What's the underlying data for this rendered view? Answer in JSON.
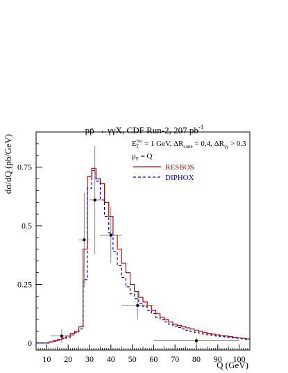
{
  "chart_data": {
    "type": "line",
    "title": "pp̄ → γγX, CDF Run-2, 207 pb⁻¹",
    "title_parts": {
      "main": "pp̄ → γγX, CDF Run-2, 207 pb",
      "sup": "-1"
    },
    "xlabel": "Q (GeV)",
    "ylabel": "dσ/dQ (pb/GeV)",
    "xlim": [
      5,
      105
    ],
    "ylim": [
      -0.03,
      0.9
    ],
    "x_ticks": [
      10,
      20,
      30,
      40,
      50,
      60,
      70,
      80,
      90,
      100
    ],
    "y_ticks": [
      0,
      0.25,
      0.5,
      0.75
    ],
    "y_tick_labels": [
      "0",
      "0.25",
      "0.5",
      "0.75"
    ],
    "annotations": [
      {
        "id": "iso",
        "text": "E_T^iso = 1 GeV, ΔR_cone = 0.4, ΔR_γγ > 0.3"
      },
      {
        "id": "scale",
        "text": "μ_F = Q"
      }
    ],
    "annotation_parts": {
      "e": "E",
      "iso": "iso",
      "t": "T",
      "mid": " = 1 GeV, ΔR",
      "cone": "cone",
      "mid2": " = 0.4, ΔR",
      "gg": "γγ",
      "end": " > 0.3",
      "mu": "μ",
      "f": "F",
      "muend": " = Q"
    },
    "legend_position": "upper-right",
    "series": [
      {
        "name": "RESBOS",
        "color": "#cc0000",
        "style": "solid",
        "bin_edges": [
          5,
          7,
          9,
          11,
          13,
          15,
          17,
          19,
          21,
          23,
          25,
          27,
          29,
          31,
          33,
          35,
          37,
          39,
          41,
          43,
          45,
          47,
          49,
          51,
          53,
          55,
          57,
          59,
          61,
          63,
          65,
          67,
          69,
          71,
          73,
          75,
          77,
          79,
          81,
          83,
          85,
          87,
          89,
          91,
          93,
          95,
          97,
          99,
          101,
          103,
          105
        ],
        "values": [
          0,
          0,
          0,
          0.005,
          0.01,
          0.015,
          0.022,
          0.03,
          0.04,
          0.05,
          0.07,
          0.4,
          0.71,
          0.745,
          0.7,
          0.68,
          0.6,
          0.54,
          0.46,
          0.4,
          0.34,
          0.3,
          0.25,
          0.22,
          0.195,
          0.175,
          0.16,
          0.14,
          0.125,
          0.11,
          0.1,
          0.09,
          0.08,
          0.075,
          0.07,
          0.065,
          0.06,
          0.055,
          0.05,
          0.045,
          0.04,
          0.038,
          0.035,
          0.032,
          0.03,
          0.028,
          0.025,
          0.022,
          0.02,
          0.018
        ]
      },
      {
        "name": "DIPHOX",
        "color": "#0000dd",
        "style": "dashed",
        "bin_edges": [
          5,
          7,
          9,
          11,
          13,
          15,
          17,
          19,
          21,
          23,
          25,
          27,
          29,
          31,
          33,
          35,
          37,
          39,
          41,
          43,
          45,
          47,
          49,
          51,
          53,
          55,
          57,
          59,
          61,
          63,
          65,
          67,
          69,
          71,
          73,
          75,
          77,
          79,
          81,
          83,
          85,
          87,
          89,
          91,
          93,
          95,
          97,
          99,
          101,
          103,
          105
        ],
        "values": [
          0,
          0,
          0,
          0.005,
          0.008,
          0.012,
          0.018,
          0.025,
          0.035,
          0.045,
          0.06,
          0.27,
          0.66,
          0.735,
          0.69,
          0.61,
          0.54,
          0.47,
          0.39,
          0.33,
          0.28,
          0.24,
          0.21,
          0.19,
          0.17,
          0.155,
          0.14,
          0.125,
          0.11,
          0.1,
          0.09,
          0.08,
          0.072,
          0.066,
          0.06,
          0.055,
          0.05,
          0.046,
          0.042,
          0.038,
          0.035,
          0.032,
          0.03,
          0.028,
          0.026,
          0.024,
          0.022,
          0.02,
          0.018,
          0.016
        ]
      }
    ],
    "data_points": [
      {
        "x": 17,
        "y": 0.03,
        "xerr": 5,
        "yerr": 0.03
      },
      {
        "x": 27.5,
        "y": 0.44,
        "xerr": 2.5,
        "yerr": 0.2
      },
      {
        "x": 32.5,
        "y": 0.61,
        "xerr": 2.5,
        "yerr": 0.23
      },
      {
        "x": 40,
        "y": 0.46,
        "xerr": 5,
        "yerr": 0.12
      },
      {
        "x": 52.5,
        "y": 0.16,
        "xerr": 7.5,
        "yerr": 0.06
      },
      {
        "x": 80,
        "y": 0.01,
        "xerr": 20,
        "yerr": 0.015
      }
    ]
  }
}
